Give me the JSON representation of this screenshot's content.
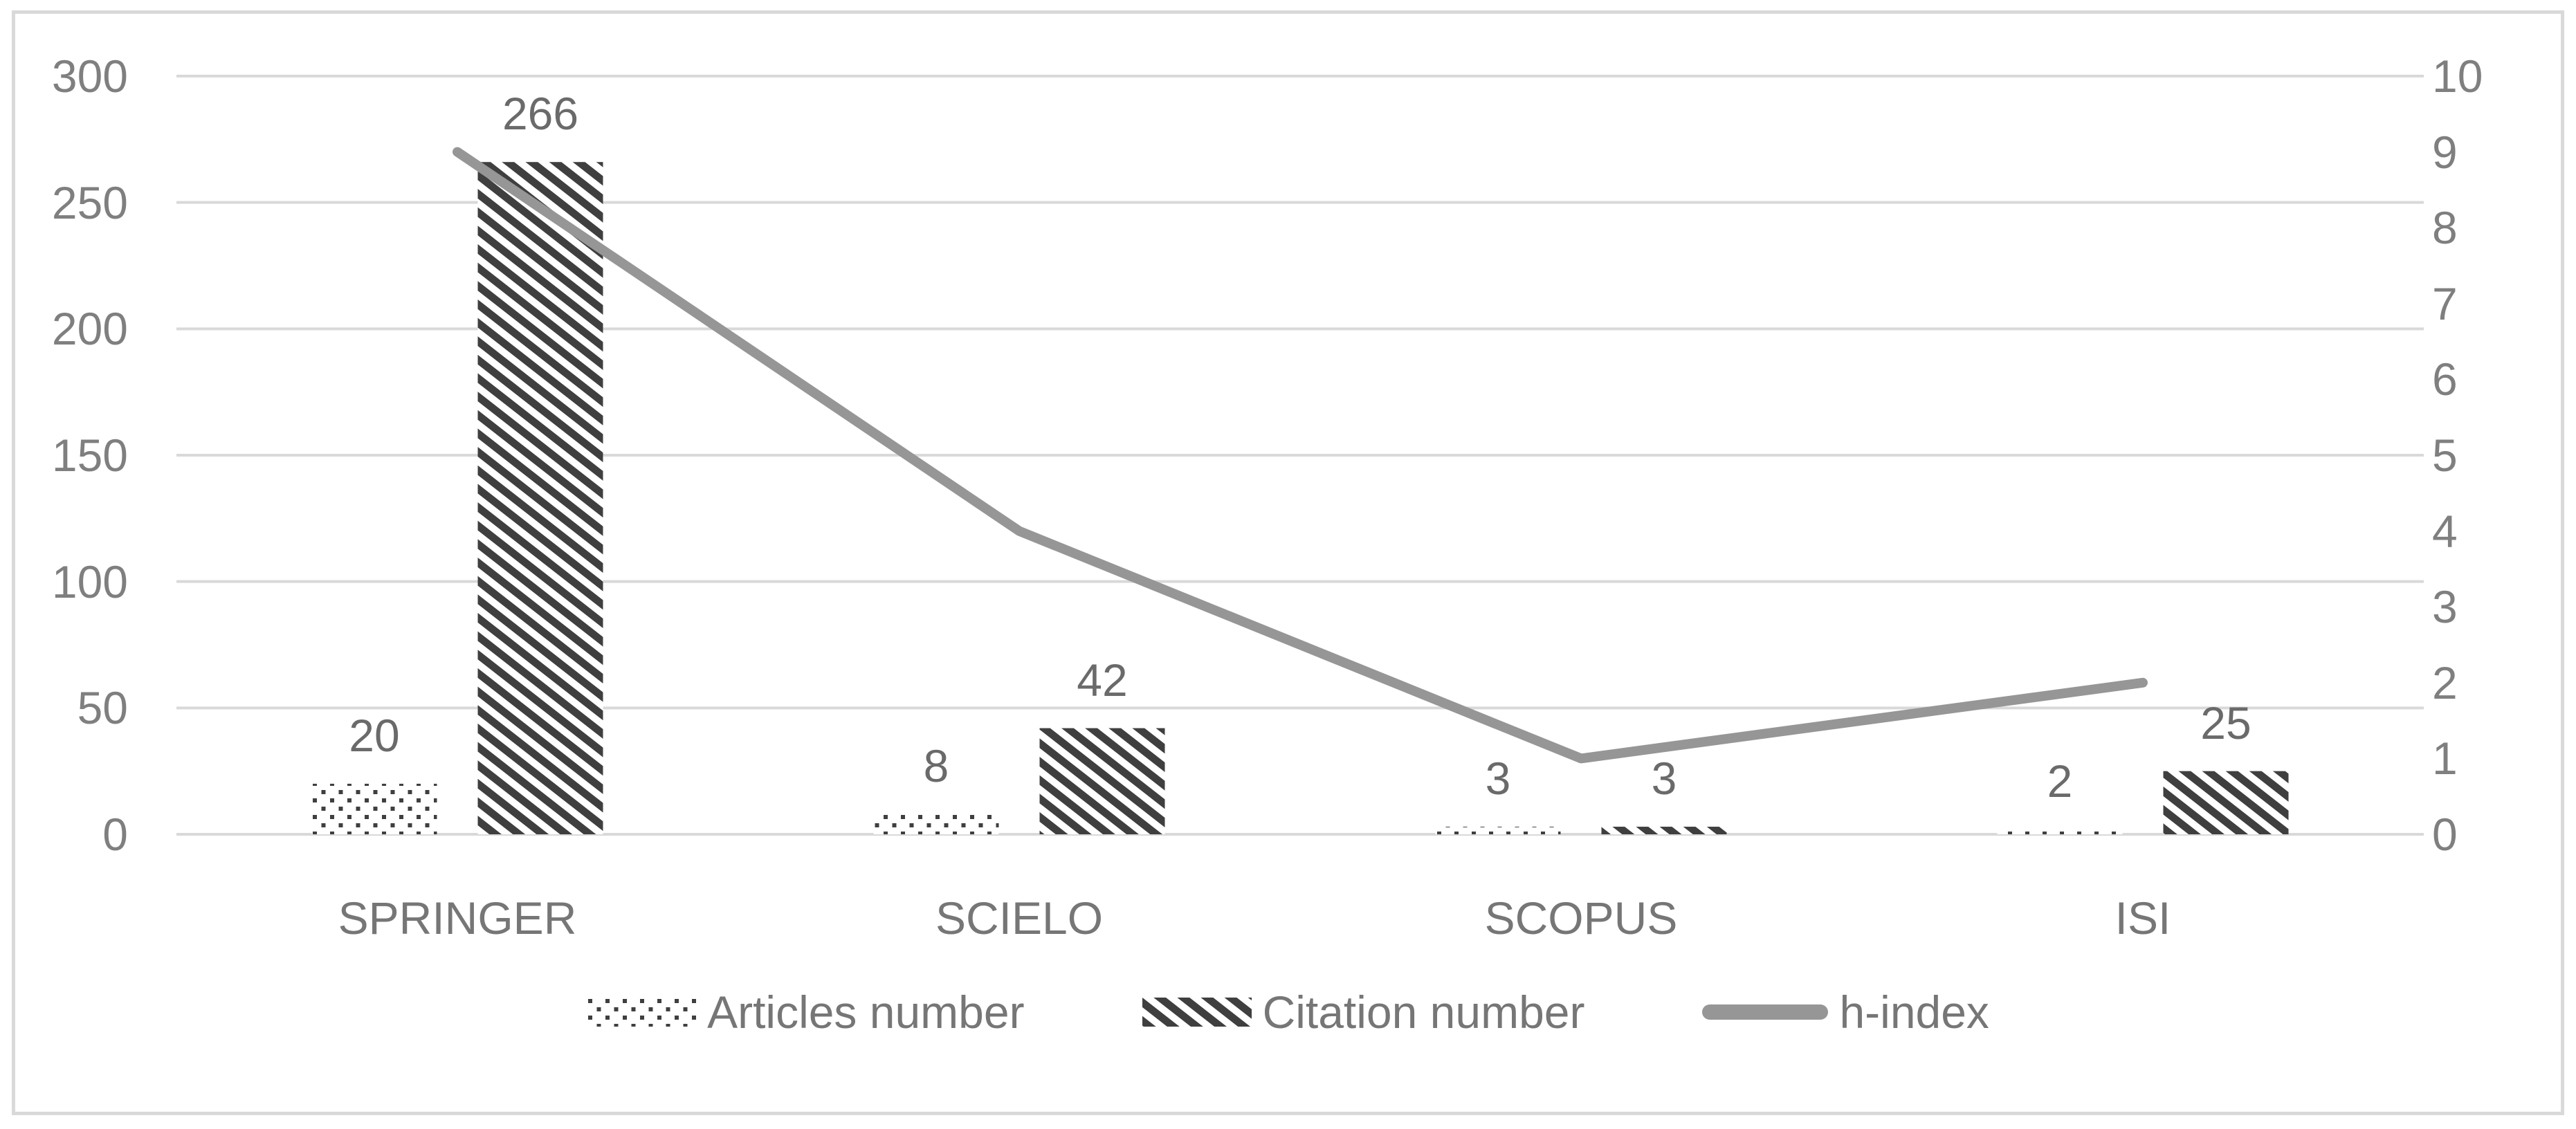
{
  "chart_data": {
    "type": "bar",
    "subtype": "clustered-pattern-columns-with-line",
    "title": "",
    "xlabel": "",
    "ylabel": "",
    "categories": [
      "SPRINGER",
      "SCIELO",
      "SCOPUS",
      "ISI"
    ],
    "series": [
      {
        "name": "Articles number",
        "chart_type": "bar",
        "axis": "left",
        "fill_pattern": "dotted",
        "values": [
          20,
          8,
          3,
          2
        ],
        "data_labels": [
          "20",
          "8",
          "3",
          "2"
        ]
      },
      {
        "name": "Citation number",
        "chart_type": "bar",
        "axis": "left",
        "fill_pattern": "diagonal-hatch",
        "values": [
          266,
          42,
          3,
          25
        ],
        "data_labels": [
          "266",
          "42",
          "3",
          "25"
        ]
      },
      {
        "name": "h-index",
        "chart_type": "line",
        "axis": "right",
        "values": [
          9,
          4,
          1,
          2
        ]
      }
    ],
    "left_axis": {
      "min": 0,
      "max": 300,
      "step": 50,
      "ticks": [
        "0",
        "50",
        "100",
        "150",
        "200",
        "250",
        "300"
      ]
    },
    "right_axis": {
      "min": 0,
      "max": 10,
      "step": 1,
      "ticks": [
        "0",
        "1",
        "2",
        "3",
        "4",
        "5",
        "6",
        "7",
        "8",
        "9",
        "10"
      ]
    },
    "grid": "horizontal",
    "legend_position": "bottom",
    "colors": {
      "pattern_ink": "#3f3f3f",
      "line": "#969696",
      "gridline": "#d9d9d9",
      "frame_border": "#d9d9d9",
      "tick_text": "#7f7f7f",
      "category_text": "#767676",
      "data_label_text": "#6a6a6a",
      "legend_text": "#767676",
      "background": "#ffffff"
    }
  }
}
